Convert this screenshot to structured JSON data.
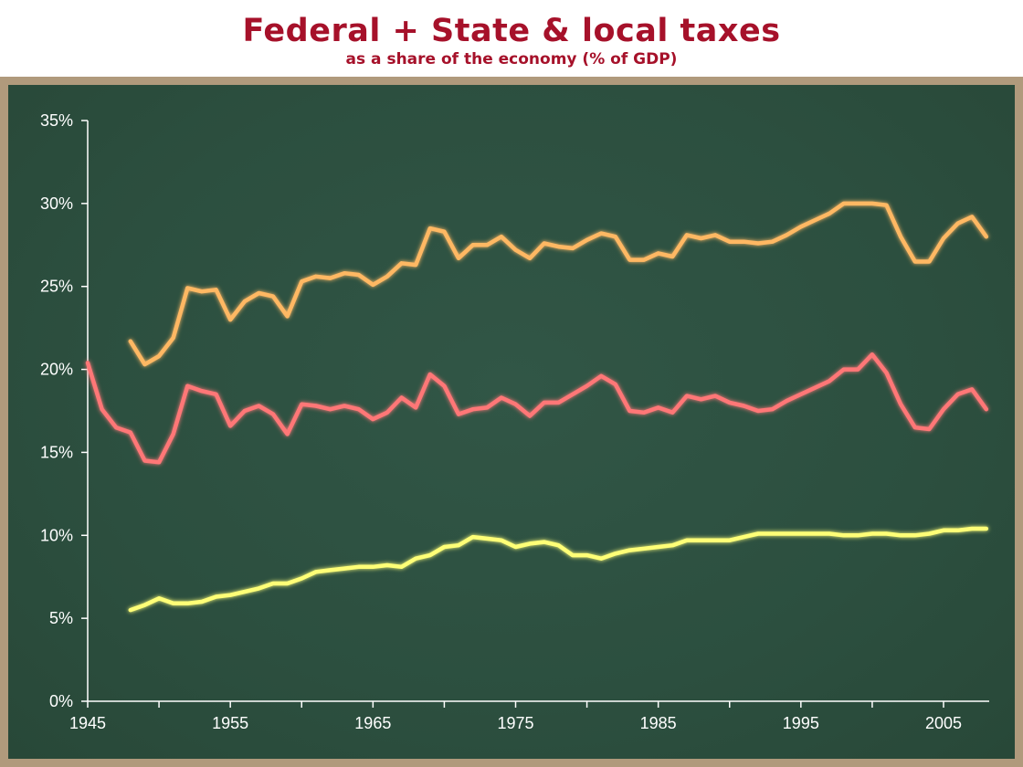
{
  "title": "Federal + State & local taxes",
  "subtitle": "as a share of the economy (% of GDP)",
  "colors": {
    "title": "#a6112a",
    "board_frame": "#b09a7c",
    "board": "#2c4f3f",
    "axis": "#ffffff",
    "combined": "#ffb864",
    "federal": "#ff7777",
    "state_local": "#ffff77"
  },
  "chart_data": {
    "type": "line",
    "title": "Federal + State & local taxes",
    "subtitle": "as a share of the economy (% of GDP)",
    "xlabel": "",
    "ylabel": "",
    "xlim": [
      1945,
      2009
    ],
    "ylim": [
      0,
      35
    ],
    "x_ticks": [
      1945,
      1955,
      1965,
      1975,
      1985,
      1995,
      2005
    ],
    "x_tick_labels": [
      "1945",
      "1955",
      "1965",
      "1975",
      "1985",
      "1995",
      "2005"
    ],
    "y_ticks": [
      0,
      5,
      10,
      15,
      20,
      25,
      30,
      35
    ],
    "y_tick_labels": [
      "0%",
      "5%",
      "10%",
      "15%",
      "20%",
      "25%",
      "30%",
      "35%"
    ],
    "grid": false,
    "legend": "none",
    "series": [
      {
        "color": "#ffb864",
        "x": [
          1948,
          1949,
          1950,
          1951,
          1952,
          1953,
          1954,
          1955,
          1956,
          1957,
          1958,
          1959,
          1960,
          1961,
          1962,
          1963,
          1964,
          1965,
          1966,
          1967,
          1968,
          1969,
          1970,
          1971,
          1972,
          1973,
          1974,
          1975,
          1976,
          1977,
          1978,
          1979,
          1980,
          1981,
          1982,
          1983,
          1984,
          1985,
          1986,
          1987,
          1988,
          1989,
          1990,
          1991,
          1992,
          1993,
          1994,
          1995,
          1996,
          1997,
          1998,
          1999,
          2000,
          2001,
          2002,
          2003,
          2004,
          2005,
          2006,
          2007,
          2008
        ],
        "values": [
          21.7,
          20.3,
          20.8,
          21.9,
          24.9,
          24.7,
          24.8,
          23.0,
          24.1,
          24.6,
          24.4,
          23.2,
          25.3,
          25.6,
          25.5,
          25.8,
          25.7,
          25.1,
          25.6,
          26.4,
          26.3,
          28.5,
          28.3,
          26.7,
          27.5,
          27.5,
          28.0,
          27.2,
          26.7,
          27.6,
          27.4,
          27.3,
          27.8,
          28.2,
          28.0,
          26.6,
          26.6,
          27.0,
          26.8,
          28.1,
          27.9,
          28.1,
          27.7,
          27.7,
          27.6,
          27.7,
          28.1,
          28.6,
          29.0,
          29.4,
          30.0,
          30.0,
          30.0,
          29.9,
          28.0,
          26.5,
          26.5,
          27.9,
          28.8,
          29.2,
          28.0
        ]
      },
      {
        "color": "#ff7777",
        "x": [
          1945,
          1946,
          1947,
          1948,
          1949,
          1950,
          1951,
          1952,
          1953,
          1954,
          1955,
          1956,
          1957,
          1958,
          1959,
          1960,
          1961,
          1962,
          1963,
          1964,
          1965,
          1966,
          1967,
          1968,
          1969,
          1970,
          1971,
          1972,
          1973,
          1974,
          1975,
          1976,
          1977,
          1978,
          1979,
          1980,
          1981,
          1982,
          1983,
          1984,
          1985,
          1986,
          1987,
          1988,
          1989,
          1990,
          1991,
          1992,
          1993,
          1994,
          1995,
          1996,
          1997,
          1998,
          1999,
          2000,
          2001,
          2002,
          2003,
          2004,
          2005,
          2006,
          2007,
          2008
        ],
        "values": [
          20.4,
          17.6,
          16.5,
          16.2,
          14.5,
          14.4,
          16.1,
          19.0,
          18.7,
          18.5,
          16.6,
          17.5,
          17.8,
          17.3,
          16.1,
          17.9,
          17.8,
          17.6,
          17.8,
          17.6,
          17.0,
          17.4,
          18.3,
          17.7,
          19.7,
          19.0,
          17.3,
          17.6,
          17.7,
          18.3,
          17.9,
          17.2,
          18.0,
          18.0,
          18.5,
          19.0,
          19.6,
          19.1,
          17.5,
          17.4,
          17.7,
          17.4,
          18.4,
          18.2,
          18.4,
          18.0,
          17.8,
          17.5,
          17.6,
          18.1,
          18.5,
          18.9,
          19.3,
          20.0,
          20.0,
          20.9,
          19.8,
          17.9,
          16.5,
          16.4,
          17.6,
          18.5,
          18.8,
          17.6
        ]
      },
      {
        "color": "#ffff77",
        "x": [
          1948,
          1949,
          1950,
          1951,
          1952,
          1953,
          1954,
          1955,
          1956,
          1957,
          1958,
          1959,
          1960,
          1961,
          1962,
          1963,
          1964,
          1965,
          1966,
          1967,
          1968,
          1969,
          1970,
          1971,
          1972,
          1973,
          1974,
          1975,
          1976,
          1977,
          1978,
          1979,
          1980,
          1981,
          1982,
          1983,
          1984,
          1985,
          1986,
          1987,
          1988,
          1989,
          1990,
          1991,
          1992,
          1993,
          1994,
          1995,
          1996,
          1997,
          1998,
          1999,
          2000,
          2001,
          2002,
          2003,
          2004,
          2005,
          2006,
          2007,
          2008
        ],
        "values": [
          5.5,
          5.8,
          6.2,
          5.9,
          5.9,
          6.0,
          6.3,
          6.4,
          6.6,
          6.8,
          7.1,
          7.1,
          7.4,
          7.8,
          7.9,
          8.0,
          8.1,
          8.1,
          8.2,
          8.1,
          8.6,
          8.8,
          9.3,
          9.4,
          9.9,
          9.8,
          9.7,
          9.3,
          9.5,
          9.6,
          9.4,
          8.8,
          8.8,
          8.6,
          8.9,
          9.1,
          9.2,
          9.3,
          9.4,
          9.7,
          9.7,
          9.7,
          9.7,
          9.9,
          10.1,
          10.1,
          10.1,
          10.1,
          10.1,
          10.1,
          10.0,
          10.0,
          10.1,
          10.1,
          10.0,
          10.0,
          10.1,
          10.3,
          10.3,
          10.4,
          10.4
        ]
      }
    ]
  }
}
